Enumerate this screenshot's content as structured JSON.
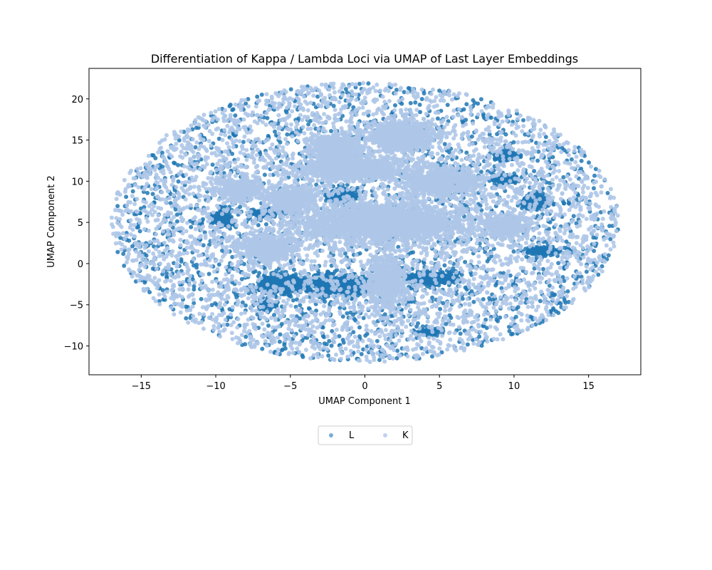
{
  "chart_data": {
    "type": "scatter",
    "title": "Differentiation of Kappa / Lambda Loci via UMAP of Last Layer Embeddings",
    "xlabel": "UMAP Component 1",
    "ylabel": "UMAP Component 2",
    "xlim": [
      -18.5,
      18.5
    ],
    "ylim": [
      -13.5,
      23.7
    ],
    "xticks": [
      -15,
      -10,
      -5,
      0,
      5,
      10,
      15
    ],
    "yticks": [
      -10,
      -5,
      0,
      5,
      10,
      15,
      20
    ],
    "xtick_labels": [
      "−15",
      "−10",
      "−5",
      "0",
      "5",
      "10",
      "15"
    ],
    "ytick_labels": [
      "−10",
      "−5",
      "0",
      "5",
      "10",
      "15",
      "20"
    ],
    "legend": {
      "placement": "below-center",
      "ncol": 2
    },
    "series": [
      {
        "name": "L",
        "color": "#1f77b4"
      },
      {
        "name": "K",
        "color": "#aec7e8"
      }
    ],
    "overall_extent": {
      "center": [
        0,
        5
      ],
      "x_radius": 17,
      "y_radius": 17
    },
    "clusters": [
      {
        "series": "K",
        "center": [
          2.5,
          15.5
        ],
        "spread": [
          2.0,
          1.6
        ],
        "count": 900
      },
      {
        "series": "K",
        "center": [
          -2.0,
          14.0
        ],
        "spread": [
          1.5,
          1.5
        ],
        "count": 600
      },
      {
        "series": "K",
        "center": [
          -1.0,
          11.5
        ],
        "spread": [
          3.0,
          1.3
        ],
        "count": 900
      },
      {
        "series": "K",
        "center": [
          1.0,
          5.0
        ],
        "spread": [
          5.0,
          2.2
        ],
        "count": 2200
      },
      {
        "series": "K",
        "center": [
          5.0,
          10.0
        ],
        "spread": [
          2.5,
          1.6
        ],
        "count": 700
      },
      {
        "series": "K",
        "center": [
          -5.0,
          8.0
        ],
        "spread": [
          1.6,
          1.3
        ],
        "count": 500
      },
      {
        "series": "K",
        "center": [
          -6.5,
          2.0
        ],
        "spread": [
          1.8,
          1.4
        ],
        "count": 550
      },
      {
        "series": "K",
        "center": [
          1.5,
          -2.0
        ],
        "spread": [
          1.2,
          3.0
        ],
        "count": 600
      },
      {
        "series": "K",
        "center": [
          -8.5,
          9.0
        ],
        "spread": [
          1.3,
          1.3
        ],
        "count": 350
      },
      {
        "series": "K",
        "center": [
          9.5,
          4.5
        ],
        "spread": [
          1.5,
          1.5
        ],
        "count": 350
      },
      {
        "series": "L",
        "center": [
          -5.5,
          -2.5
        ],
        "spread": [
          1.5,
          0.9
        ],
        "count": 650
      },
      {
        "series": "L",
        "center": [
          -1.5,
          -2.5
        ],
        "spread": [
          2.0,
          1.0
        ],
        "count": 750
      },
      {
        "series": "L",
        "center": [
          4.5,
          -1.8
        ],
        "spread": [
          1.5,
          0.6
        ],
        "count": 400
      },
      {
        "series": "L",
        "center": [
          -1.5,
          8.2
        ],
        "spread": [
          0.9,
          0.7
        ],
        "count": 250
      },
      {
        "series": "L",
        "center": [
          11.5,
          7.5
        ],
        "spread": [
          0.8,
          0.8
        ],
        "count": 200
      },
      {
        "series": "L",
        "center": [
          -9.5,
          5.5
        ],
        "spread": [
          0.6,
          1.0
        ],
        "count": 160
      },
      {
        "series": "L",
        "center": [
          9.5,
          13.0
        ],
        "spread": [
          0.7,
          0.5
        ],
        "count": 120
      },
      {
        "series": "L",
        "center": [
          9.5,
          10.2
        ],
        "spread": [
          0.7,
          0.5
        ],
        "count": 120
      },
      {
        "series": "L",
        "center": [
          -6.5,
          6.2
        ],
        "spread": [
          1.2,
          0.4
        ],
        "count": 130
      },
      {
        "series": "L",
        "center": [
          4.2,
          -8.3
        ],
        "spread": [
          0.7,
          0.4
        ],
        "count": 100
      },
      {
        "series": "L",
        "center": [
          12.0,
          1.5
        ],
        "spread": [
          1.2,
          0.5
        ],
        "count": 120
      },
      {
        "series": "L",
        "center": [
          -6.5,
          -5.0
        ],
        "spread": [
          0.7,
          0.5
        ],
        "count": 80
      }
    ],
    "background": {
      "series_mix": {
        "L": 0.32,
        "K": 0.68
      },
      "count": 6500
    }
  }
}
